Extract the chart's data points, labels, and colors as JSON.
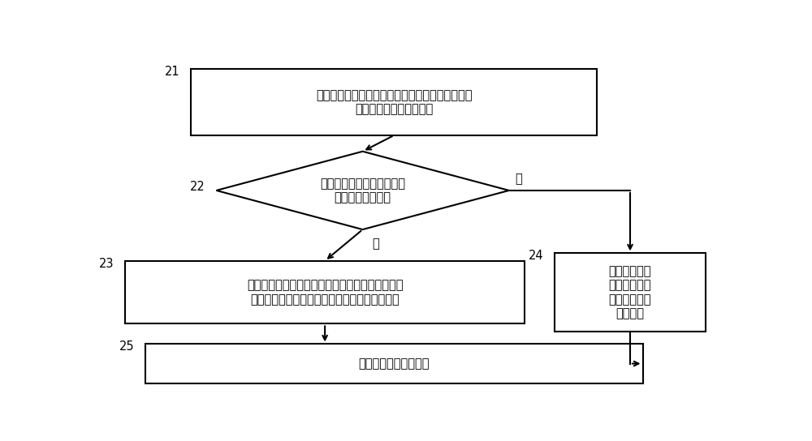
{
  "bg_color": "#ffffff",
  "box_color": "#ffffff",
  "box_edge_color": "#000000",
  "arrow_color": "#000000",
  "text_color": "#000000",
  "box1_text": "在根据目标页地址进行读操作时，查询目标区块得\n到该目标页地址对应的页",
  "box1_label": "21",
  "diamond_text": "判断该目标页地址对应的页\n的数量是否为两个",
  "diamond_label": "22",
  "box2_text": "当该目标页地址对应两个页时，根据该两个页的校\n验码和页标识从该两个页中选取一页作为有效页",
  "box2_label": "23",
  "box3_text": "当该目标页地\n址对应一个页\n时，将该页作\n为有效页",
  "box3_label": "24",
  "box4_text": "读取该有效页中的数据",
  "box4_label": "25",
  "yes_label": "是",
  "no_label": "否"
}
